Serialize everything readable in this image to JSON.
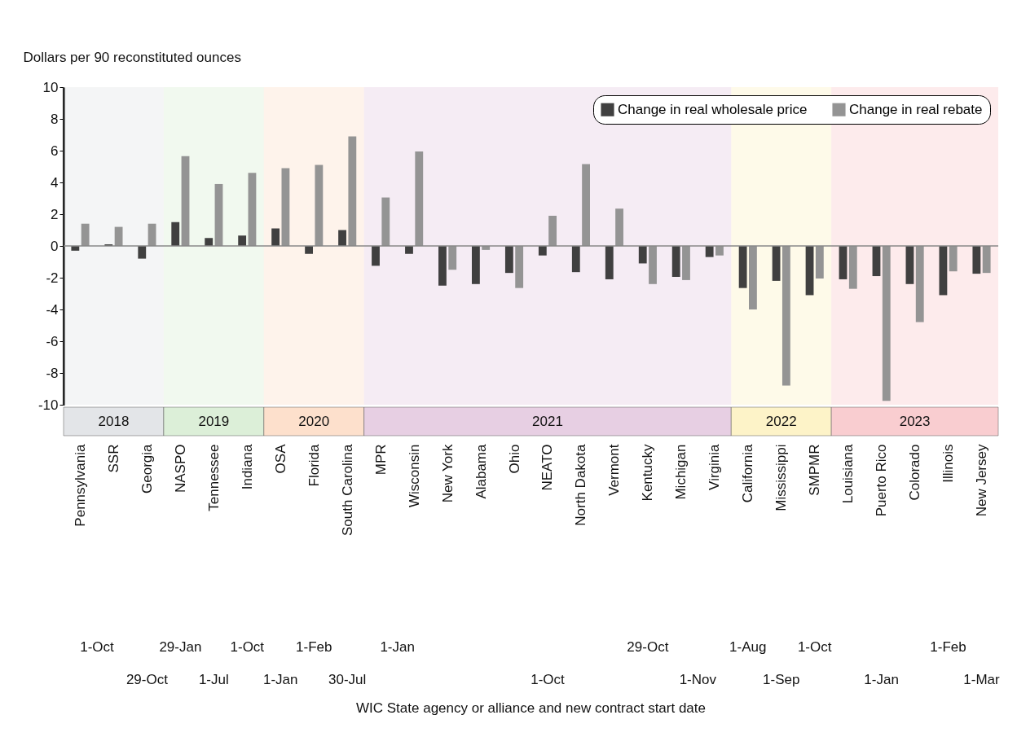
{
  "chart_data": {
    "type": "bar",
    "ylabel": "Dollars per 90 reconstituted ounces",
    "categories": [
      "Pennsylvania",
      "SSR",
      "Georgia",
      "NASPO",
      "Tennessee",
      "Indiana",
      "OSA",
      "Florida",
      "South Carolina",
      "MPR",
      "Wisconsin",
      "New York",
      "Alabama",
      "Ohio",
      "NEATO",
      "North Dakota",
      "Vermont",
      "Kentucky",
      "Michigan",
      "Virginia",
      "California",
      "Mississippi",
      "SMPMR",
      "Louisiana",
      "Puerto Rico",
      "Colorado",
      "Illinois",
      "New Jersey"
    ],
    "series": [
      {
        "name": "Change in real wholesale price",
        "color": "#404040",
        "values": [
          -0.3,
          0.1,
          -0.8,
          1.5,
          0.5,
          0.65,
          1.1,
          -0.5,
          1.0,
          -1.25,
          -0.5,
          -2.5,
          -2.4,
          -1.7,
          -0.6,
          -1.65,
          -2.1,
          -1.1,
          -1.95,
          -0.7,
          -2.65,
          -2.2,
          -3.1,
          -2.1,
          -1.9,
          -2.4,
          -3.1,
          -1.75
        ]
      },
      {
        "name": "Change in real rebate",
        "color": "#949494",
        "values": [
          1.4,
          1.2,
          1.4,
          5.65,
          3.9,
          4.6,
          4.9,
          5.1,
          6.9,
          3.05,
          5.95,
          -1.5,
          -0.25,
          -2.65,
          1.9,
          5.15,
          2.35,
          -2.4,
          -2.15,
          -0.6,
          -4.0,
          -8.8,
          -2.05,
          -2.7,
          -9.75,
          -4.8,
          -1.6,
          -1.7
        ]
      }
    ],
    "ylim": [
      -10,
      10
    ],
    "yticks": [
      -10,
      -8,
      -6,
      -4,
      -2,
      0,
      2,
      4,
      6,
      8,
      10
    ],
    "legend": "top right",
    "ref_lines": [
      {
        "axis": "y",
        "value": 0,
        "color": "#888888"
      }
    ],
    "bands": [
      {
        "axis": "x",
        "from": "Pennsylvania",
        "to": "Georgia",
        "label": "2018",
        "color": "#e3e5e8"
      },
      {
        "axis": "x",
        "from": "NASPO",
        "to": "Indiana",
        "label": "2019",
        "color": "#dcefd8"
      },
      {
        "axis": "x",
        "from": "OSA",
        "to": "South Carolina",
        "label": "2020",
        "color": "#fde0cc"
      },
      {
        "axis": "x",
        "from": "MPR",
        "to": "Virginia",
        "label": "2021",
        "color": "#e7cfe3"
      },
      {
        "axis": "x",
        "from": "California",
        "to": "SMPMR",
        "label": "2022",
        "color": "#fdf3c8"
      },
      {
        "axis": "x",
        "from": "Louisiana",
        "to": "New Jersey",
        "label": "2023",
        "color": "#f9cdd0"
      }
    ],
    "annotations": [
      "1-Oct",
      "29-Oct",
      "29-Jan",
      "1-Jul",
      "1-Oct",
      "1-Jan",
      "1-Feb",
      "30-Jul",
      "1-Jan",
      "1-Oct",
      "29-Oct",
      "1-Nov",
      "1-Aug",
      "1-Sep",
      "1-Oct",
      "1-Jan",
      "1-Feb",
      "1-Mar",
      "WIC State agency or alliance and new contract start date"
    ]
  }
}
